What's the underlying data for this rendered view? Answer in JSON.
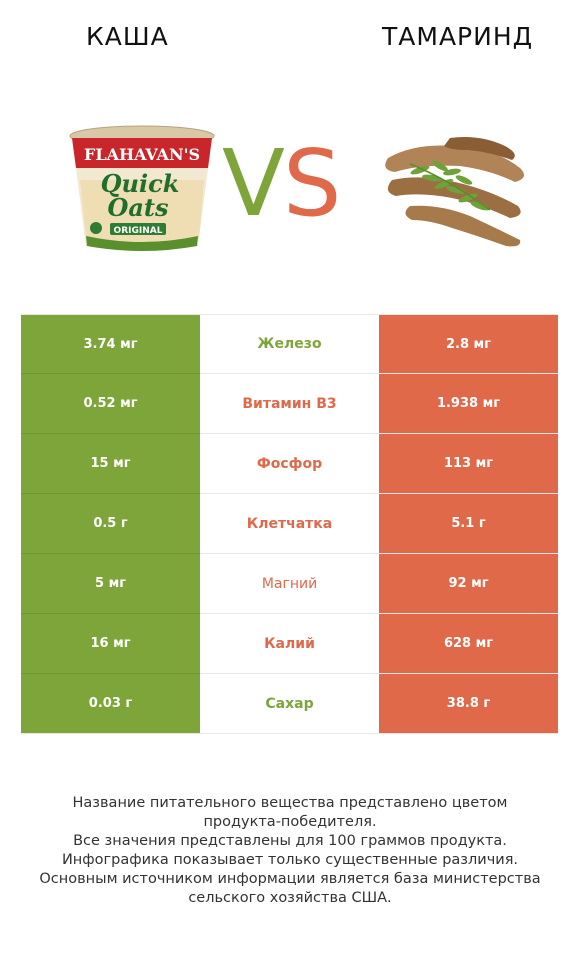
{
  "header": {
    "left_title": "КАША",
    "right_title": "ТАМАРИНД"
  },
  "vs": {
    "v": "V",
    "s": "S"
  },
  "left_product": {
    "brand": "FLAHAVAN'S",
    "name_line1": "Quick",
    "name_line2": "Oats",
    "variant": "ORIGINAL"
  },
  "colors": {
    "winner_left": "#7da53a",
    "winner_right": "#e0694a"
  },
  "rows": [
    {
      "left": "3.74 мг",
      "nutrient": "Железо",
      "right": "2.8 мг",
      "winner": "left"
    },
    {
      "left": "0.52 мг",
      "nutrient": "Витамин B3",
      "right": "1.938 мг",
      "winner": "right"
    },
    {
      "left": "15 мг",
      "nutrient": "Фосфор",
      "right": "113 мг",
      "winner": "right"
    },
    {
      "left": "0.5 г",
      "nutrient": "Клетчатка",
      "right": "5.1 г",
      "winner": "right"
    },
    {
      "left": "5 мг",
      "nutrient": "Магний",
      "right": "92 мг",
      "winner": "right"
    },
    {
      "left": "16 мг",
      "nutrient": "Калий",
      "right": "628 мг",
      "winner": "right"
    },
    {
      "left": "0.03 г",
      "nutrient": "Сахар",
      "right": "38.8 г",
      "winner": "left"
    }
  ],
  "footer": {
    "line1": "Название питательного вещества представлено цветом",
    "line2": "продукта-победителя.",
    "line3": "Все значения представлены для 100 граммов продукта.",
    "line4": "Инфографика показывает только существенные различия.",
    "line5": "Основным источником информации является база министерства",
    "line6": "сельского хозяйства США."
  }
}
